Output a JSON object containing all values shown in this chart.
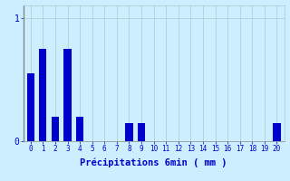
{
  "xlabel": "Précipitations 6min ( mm )",
  "bar_values": [
    0.55,
    0.75,
    0.2,
    0.75,
    0.2,
    0.0,
    0.0,
    0.0,
    0.15,
    0.15,
    0.0,
    0.0,
    0.0,
    0.0,
    0.0,
    0.0,
    0.0,
    0.0,
    0.0,
    0.0,
    0.15
  ],
  "bar_color": "#0000cc",
  "bg_color": "#cceeff",
  "grid_color": "#aacccc",
  "text_color": "#0000cc",
  "ylim": [
    0,
    1.1
  ],
  "xlim": [
    -0.6,
    20.6
  ],
  "yticks": [
    0,
    1
  ],
  "xticks": [
    0,
    1,
    2,
    3,
    4,
    5,
    6,
    7,
    8,
    9,
    10,
    11,
    12,
    13,
    14,
    15,
    16,
    17,
    18,
    19,
    20
  ],
  "bar_width": 0.6,
  "figsize": [
    3.2,
    2.0
  ],
  "dpi": 100
}
